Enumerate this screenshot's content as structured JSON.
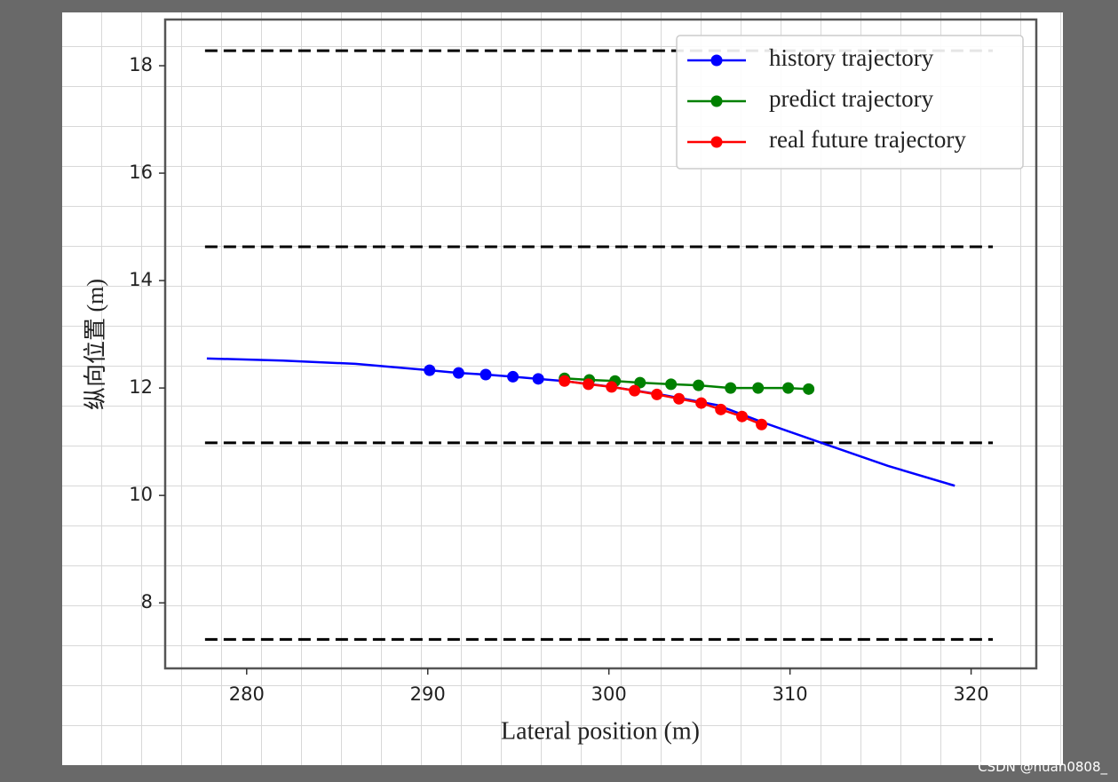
{
  "chart_data": {
    "type": "line",
    "xlabel": "Lateral position (m)",
    "ylabel": "纵向位置 (m)",
    "xlim": [
      275.5,
      323.6
    ],
    "xticks": [
      280,
      290,
      300,
      310,
      320
    ],
    "ylim": [
      6.78,
      18.86
    ],
    "yticks": [
      8,
      10,
      12,
      14,
      16,
      18
    ],
    "legend": "upper right",
    "hlines": {
      "values": [
        18.28,
        14.63,
        10.98,
        7.32
      ],
      "xmin": 277.7,
      "xmax": 321.2,
      "color": "#000000",
      "style": "dashed"
    },
    "series": [
      {
        "name": "history trajectory",
        "color": "#0000ff",
        "x": [
          277.8,
          282,
          286,
          290.1,
          291.7,
          293.2,
          294.7,
          296.1,
          297.5,
          300,
          303,
          306,
          308.5,
          311.9,
          315.4,
          319.1
        ],
        "values": [
          12.55,
          12.51,
          12.45,
          12.33,
          12.28,
          12.25,
          12.21,
          12.17,
          12.13,
          12.03,
          11.87,
          11.68,
          11.36,
          10.96,
          10.55,
          10.18
        ],
        "marker_points": {
          "x": [
            290.1,
            291.7,
            293.2,
            294.7,
            296.1
          ],
          "values": [
            12.33,
            12.28,
            12.25,
            12.21,
            12.17
          ]
        }
      },
      {
        "name": "predict trajectory",
        "color": "#008000",
        "x": [
          297.55,
          298.92,
          300.34,
          301.72,
          303.43,
          304.95,
          306.72,
          308.24,
          309.9,
          311.03
        ],
        "values": [
          12.18,
          12.15,
          12.13,
          12.1,
          12.07,
          12.05,
          12.0,
          12.0,
          12.0,
          11.98
        ]
      },
      {
        "name": "real future trajectory",
        "color": "#ff0000",
        "x": [
          297.55,
          298.87,
          300.15,
          301.42,
          302.65,
          303.87,
          305.1,
          306.18,
          307.35,
          308.43
        ],
        "values": [
          12.13,
          12.07,
          12.02,
          11.95,
          11.88,
          11.8,
          11.72,
          11.6,
          11.47,
          11.32
        ]
      }
    ]
  },
  "watermark": "CSDN @huan0808_"
}
